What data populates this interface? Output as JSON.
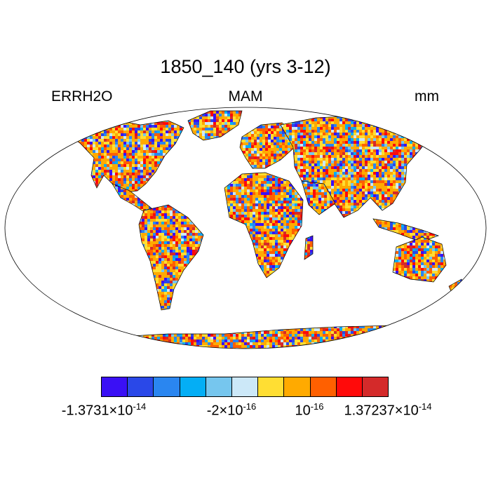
{
  "title": "1850_140 (yrs 3-12)",
  "left_label": "ERRH2O",
  "center_label": "MAM",
  "right_label": "mm",
  "colorbar": {
    "colors": [
      "#3a10f5",
      "#2a48e8",
      "#2a86f0",
      "#04aef5",
      "#76c6ee",
      "#cce8f8",
      "#ffde33",
      "#ffaa00",
      "#ff6000",
      "#ff0a0a",
      "#d42a2a"
    ],
    "labels": [
      {
        "mantissa": "-1.3731",
        "base": "10",
        "exp": "-14"
      },
      {
        "mantissa": "-2",
        "base": "10",
        "exp": "-16"
      },
      {
        "mantissa": "",
        "base": "10",
        "exp": "-16"
      },
      {
        "mantissa": "1.37237",
        "base": "10",
        "exp": "-14"
      }
    ]
  }
}
